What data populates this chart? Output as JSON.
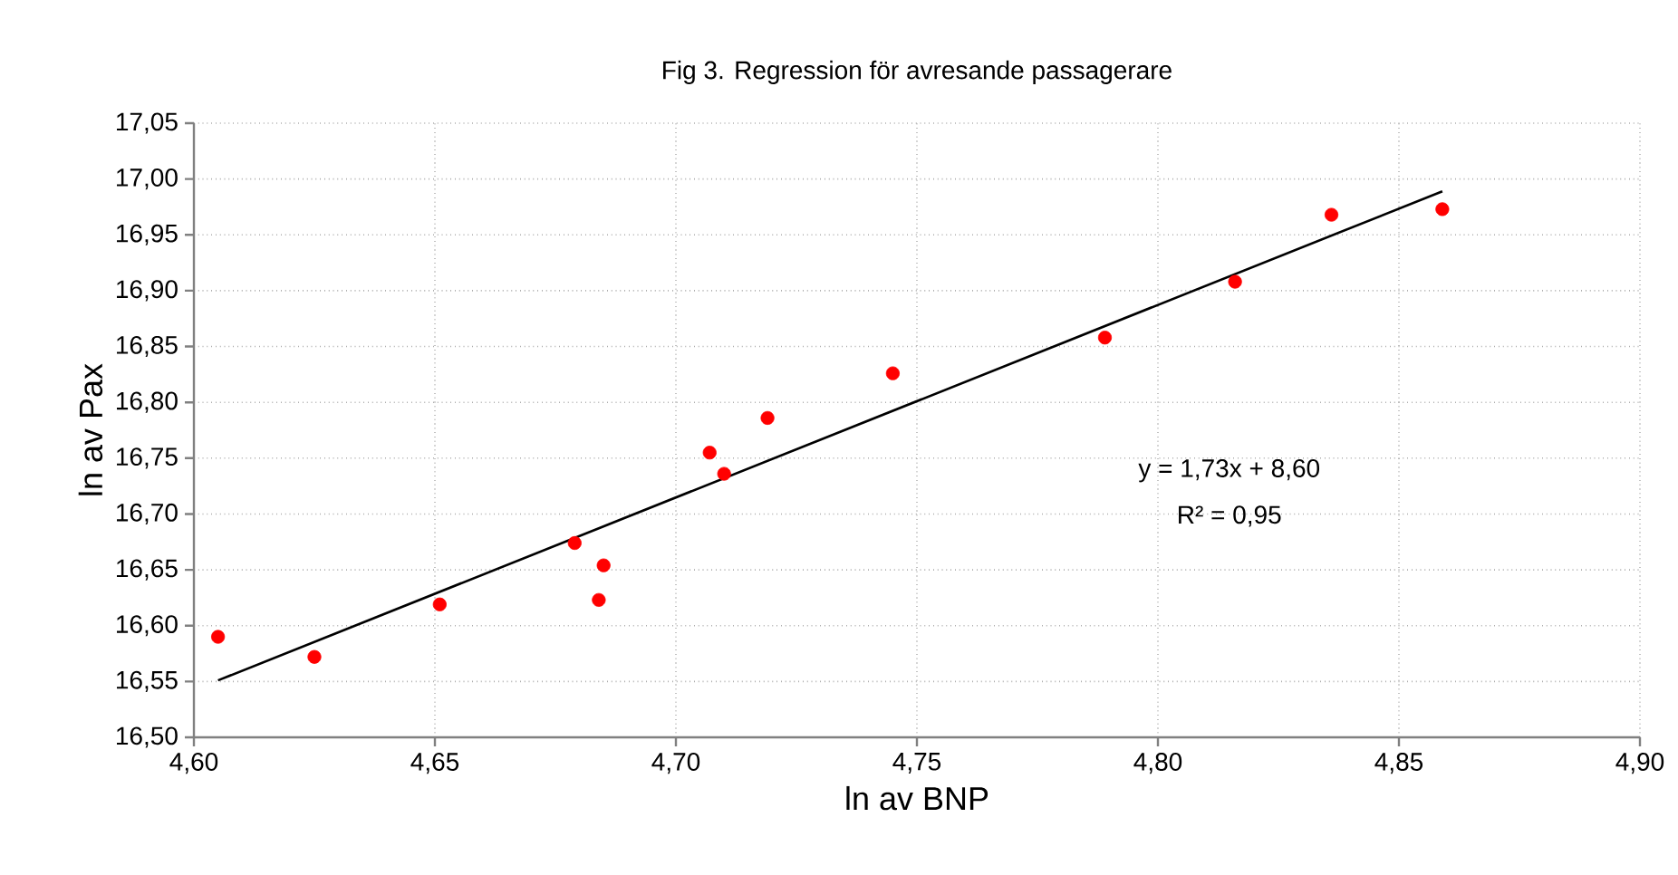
{
  "chart_data": {
    "type": "scatter",
    "title": "Fig 3. Regression för avresande passagerare",
    "xlabel": "ln av BNP",
    "ylabel": "ln av Pax",
    "annotations": [
      "y = 1,73x + 8,60",
      "R² = 0,95"
    ],
    "series": [
      {
        "color": "#ff0000",
        "marker": "circle",
        "x": [
          4.605,
          4.625,
          4.651,
          4.679,
          4.685,
          4.684,
          4.707,
          4.71,
          4.719,
          4.745,
          4.789,
          4.816,
          4.836,
          4.859
        ],
        "values": [
          16.59,
          16.572,
          16.619,
          16.674,
          16.654,
          16.623,
          16.755,
          16.736,
          16.786,
          16.826,
          16.858,
          16.908,
          16.968,
          16.973
        ]
      },
      {
        "type": "line",
        "color": "#000000",
        "marker": "none",
        "line_style": "solid",
        "x": [
          4.605,
          4.859
        ],
        "values": [
          16.551,
          16.989
        ]
      }
    ],
    "xlim": [
      4.6,
      4.9
    ],
    "xticks": [
      {
        "value": 4.6,
        "label": "4,60"
      },
      {
        "value": 4.65,
        "label": "4,65"
      },
      {
        "value": 4.7,
        "label": "4,70"
      },
      {
        "value": 4.75,
        "label": "4,75"
      },
      {
        "value": 4.8,
        "label": "4,80"
      },
      {
        "value": 4.85,
        "label": "4,85"
      },
      {
        "value": 4.9,
        "label": "4,90"
      }
    ],
    "ylim": [
      16.5,
      17.05
    ],
    "yticks": [
      {
        "value": 16.5,
        "label": "16,50"
      },
      {
        "value": 16.55,
        "label": "16,55"
      },
      {
        "value": 16.6,
        "label": "16,60"
      },
      {
        "value": 16.65,
        "label": "16,65"
      },
      {
        "value": 16.7,
        "label": "16,70"
      },
      {
        "value": 16.75,
        "label": "16,75"
      },
      {
        "value": 16.8,
        "label": "16,80"
      },
      {
        "value": 16.85,
        "label": "16,85"
      },
      {
        "value": 16.9,
        "label": "16,90"
      },
      {
        "value": 16.95,
        "label": "16,95"
      },
      {
        "value": 17.0,
        "label": "17,00"
      },
      {
        "value": 17.05,
        "label": "17,05"
      }
    ],
    "grid": true
  }
}
